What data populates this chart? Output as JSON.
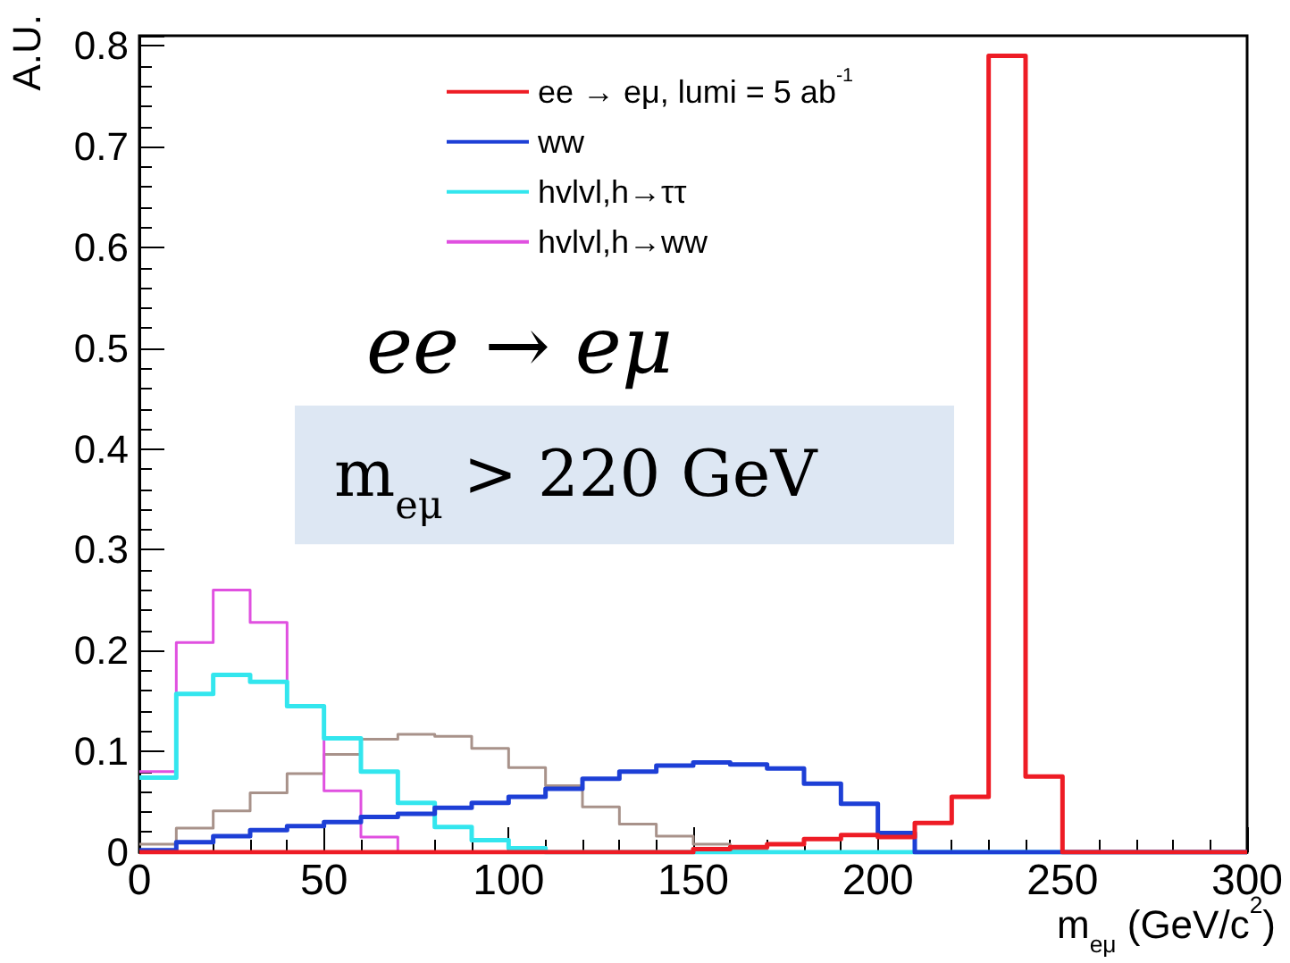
{
  "chart_data": {
    "type": "histogram",
    "xlabel": "m$_{eμ}$ (GeV/c$^{2}$)",
    "ylabel": "A.U.",
    "bins": [
      0,
      10,
      20,
      30,
      40,
      50,
      60,
      70,
      80,
      90,
      100,
      110,
      120,
      130,
      140,
      150,
      160,
      170,
      180,
      190,
      200,
      210,
      220,
      230,
      240,
      250,
      260,
      270,
      280,
      290,
      300
    ],
    "series": [
      {
        "name": "ee → eμ, lumi = 5 ab$^{-1}$",
        "color": "#ee1c25",
        "values": [
          0,
          0,
          0,
          0,
          0,
          0,
          0,
          0,
          0,
          0,
          0,
          0,
          0,
          0,
          0,
          0.003,
          0.005,
          0.008,
          0.013,
          0.017,
          0.015,
          0.029,
          0.055,
          0.79,
          0.075,
          0,
          0,
          0,
          0,
          0
        ]
      },
      {
        "name": "ww",
        "color": "#1d3fd6",
        "values": [
          0.002,
          0.01,
          0.016,
          0.022,
          0.026,
          0.03,
          0.035,
          0.038,
          0.044,
          0.049,
          0.055,
          0.063,
          0.073,
          0.08,
          0.086,
          0.089,
          0.087,
          0.083,
          0.068,
          0.048,
          0.019,
          0,
          0,
          0,
          0,
          0,
          0,
          0,
          0,
          0
        ]
      },
      {
        "name": "hvlvl,h→ττ",
        "color": "#33e6ee",
        "values": [
          0.074,
          0.157,
          0.176,
          0.169,
          0.145,
          0.113,
          0.08,
          0.049,
          0.025,
          0.012,
          0.004,
          0,
          0,
          0,
          0,
          0,
          0,
          0,
          0,
          0,
          0,
          0,
          0,
          0,
          0,
          0,
          0,
          0,
          0,
          0
        ]
      },
      {
        "name": "hvlvl,h→ww",
        "color": "#e050e0",
        "values": [
          0.08,
          0.208,
          0.26,
          0.228,
          0.145,
          0.061,
          0.015,
          0,
          0,
          0,
          0,
          0,
          0,
          0,
          0,
          0,
          0,
          0,
          0,
          0,
          0,
          0,
          0,
          0,
          0,
          0,
          0,
          0,
          0,
          0
        ]
      },
      {
        "color": "#a8928a",
        "values": [
          0.008,
          0.024,
          0.041,
          0.059,
          0.078,
          0.097,
          0.112,
          0.117,
          0.115,
          0.103,
          0.084,
          0.066,
          0.045,
          0.028,
          0.016,
          0.008,
          0.003,
          0,
          0,
          0,
          0,
          0,
          0,
          0,
          0,
          0,
          0,
          0,
          0,
          0
        ]
      }
    ],
    "annotations": [
      "ee → eμ",
      "m$_{eμ}$ > 220 GeV"
    ],
    "xlim": [
      0,
      300
    ],
    "xticks": [
      0,
      50,
      100,
      150,
      200,
      250,
      300
    ],
    "ylim": [
      0,
      0.81
    ],
    "yticks": [
      0,
      0.1,
      0.2,
      0.3,
      0.4,
      0.5,
      0.6,
      0.7,
      0.8
    ],
    "grid": false,
    "legend": "top right"
  }
}
